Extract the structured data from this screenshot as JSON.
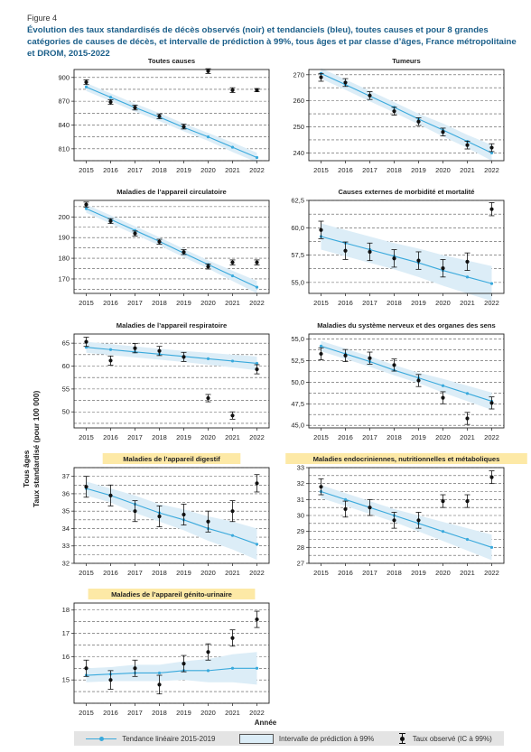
{
  "figure_label": "Figure 4",
  "title": "Évolution des taux standardisés de décès observés (noir) et tendanciels (bleu), toutes causes et pour 8 grandes catégories de causes de décès, et intervalle de prédiction à 99%, tous âges et par classe d’âges, France métropolitaine et DROM, 2015-2022",
  "y_axis_title_1": "Tous âges",
  "y_axis_title_2": "Taux standardisé (pour 100 000)",
  "x_axis_title": "Année",
  "legend": {
    "trend": "Tendance linéaire 2015-2019",
    "interval": "Intervalle de prédiction à 99%",
    "observed": "Taux observé (IC à 99%)"
  },
  "colors": {
    "trend": "#39a9dc",
    "band": "#dcedf7",
    "observed": "#111111",
    "highlight": "#fde9a6",
    "grid": "#555555"
  },
  "chart_data": [
    {
      "type": "line",
      "title": "Toutes causes",
      "highlight": false,
      "x": [
        2015,
        2016,
        2017,
        2018,
        2019,
        2020,
        2021,
        2022
      ],
      "ylim": [
        795,
        910
      ],
      "yticks": [
        810,
        840,
        870,
        900
      ],
      "ytick_labels": [
        "810",
        "840",
        "870",
        "900"
      ],
      "observed": [
        894,
        869,
        862,
        851,
        838,
        908,
        884,
        884
      ],
      "ci": [
        3,
        3,
        3,
        3,
        3,
        3,
        3,
        2
      ],
      "trend": [
        888,
        875,
        862,
        850,
        837,
        825,
        812,
        799
      ],
      "band": [
        5,
        5,
        5,
        5,
        5,
        5,
        6,
        6
      ]
    },
    {
      "type": "line",
      "title": "Tumeurs",
      "highlight": false,
      "x": [
        2015,
        2016,
        2017,
        2018,
        2019,
        2020,
        2021,
        2022
      ],
      "ylim": [
        237,
        272
      ],
      "yticks": [
        240,
        250,
        260,
        270
      ],
      "ytick_labels": [
        "240",
        "250",
        "260",
        "270"
      ],
      "observed": [
        269,
        267,
        262,
        256,
        252,
        248,
        243,
        242
      ],
      "ci": [
        1.5,
        1.5,
        1.5,
        1.5,
        1.5,
        1.5,
        1.5,
        1.5
      ],
      "trend": [
        270.5,
        266.2,
        261.8,
        257.5,
        253.0,
        248.8,
        244.4,
        240.0
      ],
      "band": [
        2,
        2,
        2,
        2,
        2,
        2.5,
        2.5,
        3
      ]
    },
    {
      "type": "line",
      "title": "Maladies de l’appareil circulatoire",
      "highlight": false,
      "x": [
        2015,
        2016,
        2017,
        2018,
        2019,
        2020,
        2021,
        2022
      ],
      "ylim": [
        163,
        208
      ],
      "yticks": [
        170,
        180,
        190,
        200
      ],
      "ytick_labels": [
        "170",
        "180",
        "190",
        "200"
      ],
      "observed": [
        206,
        198,
        192,
        188,
        183,
        176,
        178,
        178
      ],
      "ci": [
        1.2,
        1.2,
        1.2,
        1.2,
        1.2,
        1.2,
        1.2,
        1.2
      ],
      "trend": [
        204.0,
        198.8,
        193.5,
        188.2,
        182.5,
        177.0,
        171.5,
        166.0
      ],
      "band": [
        2,
        2,
        2,
        2,
        2,
        2,
        2.5,
        3
      ]
    },
    {
      "type": "line",
      "title": "Causes externes de morbidité et mortalité",
      "highlight": false,
      "x": [
        2015,
        2016,
        2017,
        2018,
        2019,
        2020,
        2021,
        2022
      ],
      "ylim": [
        54,
        62.5
      ],
      "yticks": [
        55,
        57.5,
        60,
        62.5
      ],
      "ytick_labels": [
        "55,0",
        "57,5",
        "60,0",
        "62,5"
      ],
      "observed": [
        59.8,
        57.9,
        57.8,
        57.2,
        57.0,
        56.3,
        56.9,
        61.7
      ],
      "ci": [
        0.8,
        0.8,
        0.8,
        0.8,
        0.8,
        0.8,
        0.8,
        0.6
      ],
      "trend": [
        59.2,
        58.6,
        58.0,
        57.4,
        56.8,
        56.1,
        55.5,
        54.9
      ],
      "band": [
        1.2,
        1.2,
        1.2,
        1.2,
        1.3,
        1.4,
        1.5,
        1.6
      ]
    },
    {
      "type": "line",
      "title": "Maladies de l’appareil respiratoire",
      "highlight": false,
      "x": [
        2015,
        2016,
        2017,
        2018,
        2019,
        2020,
        2021,
        2022
      ],
      "ylim": [
        46.5,
        67
      ],
      "yticks": [
        50,
        55,
        60,
        65
      ],
      "ytick_labels": [
        "50",
        "55",
        "60",
        "65"
      ],
      "observed": [
        65.3,
        61.2,
        63.9,
        63.3,
        62.0,
        53.0,
        49.2,
        59.3
      ],
      "ci": [
        1.0,
        1.0,
        1.0,
        1.0,
        1.0,
        0.8,
        0.8,
        1.0
      ],
      "trend": [
        64.1,
        63.6,
        63.1,
        62.6,
        62.1,
        61.6,
        61.1,
        60.6
      ],
      "band": [
        1.2,
        1.2,
        1.2,
        1.2,
        1.2,
        1.3,
        1.4,
        1.5
      ]
    },
    {
      "type": "line",
      "title": "Maladies du système nerveux et des organes des sens",
      "highlight": false,
      "x": [
        2015,
        2016,
        2017,
        2018,
        2019,
        2020,
        2021,
        2022
      ],
      "ylim": [
        44.7,
        55.6
      ],
      "yticks": [
        45,
        47.5,
        50,
        52.5,
        55
      ],
      "ytick_labels": [
        "45,0",
        "47,5",
        "50,0",
        "52,5",
        "55,0"
      ],
      "observed": [
        53.3,
        53.1,
        52.8,
        52.0,
        50.2,
        48.2,
        45.8,
        47.6
      ],
      "ci": [
        0.7,
        0.7,
        0.7,
        0.7,
        0.7,
        0.7,
        0.7,
        0.7
      ],
      "trend": [
        54.2,
        53.3,
        52.4,
        51.4,
        50.5,
        49.6,
        48.7,
        47.8
      ],
      "band": [
        0.6,
        0.6,
        0.6,
        0.6,
        0.6,
        0.8,
        0.9,
        1.0
      ]
    },
    {
      "type": "line",
      "title": "Maladies de l’appareil digestif",
      "highlight": true,
      "x": [
        2015,
        2016,
        2017,
        2018,
        2019,
        2020,
        2021,
        2022
      ],
      "ylim": [
        32,
        37.5
      ],
      "yticks": [
        32,
        33,
        34,
        35,
        36,
        37
      ],
      "ytick_labels": [
        "32",
        "33",
        "34",
        "35",
        "36",
        "37"
      ],
      "observed": [
        36.4,
        35.9,
        35.0,
        34.7,
        34.8,
        34.4,
        35.0,
        36.6
      ],
      "ci": [
        0.6,
        0.6,
        0.6,
        0.6,
        0.6,
        0.6,
        0.6,
        0.5
      ],
      "trend": [
        36.3,
        35.9,
        35.4,
        34.9,
        34.5,
        34.0,
        33.6,
        33.1
      ],
      "band": [
        0.4,
        0.4,
        0.5,
        0.5,
        0.6,
        0.7,
        0.8,
        0.9
      ]
    },
    {
      "type": "line",
      "title": "Maladies endocriniennes, nutritionnelles et métaboliques",
      "highlight": true,
      "x": [
        2015,
        2016,
        2017,
        2018,
        2019,
        2020,
        2021,
        2022
      ],
      "ylim": [
        27,
        33
      ],
      "yticks": [
        27,
        28,
        29,
        30,
        31,
        32,
        33
      ],
      "ytick_labels": [
        "27",
        "28",
        "29",
        "30",
        "31",
        "32",
        "33"
      ],
      "observed": [
        31.8,
        30.4,
        30.5,
        29.7,
        29.7,
        30.9,
        30.9,
        32.4
      ],
      "ci": [
        0.5,
        0.5,
        0.5,
        0.5,
        0.5,
        0.4,
        0.4,
        0.4
      ],
      "trend": [
        31.5,
        31.0,
        30.5,
        30.0,
        29.5,
        29.0,
        28.5,
        28.0
      ],
      "band": [
        0.4,
        0.4,
        0.4,
        0.4,
        0.5,
        0.6,
        0.7,
        0.8
      ]
    },
    {
      "type": "line",
      "title": "Maladies de l’appareil génito-urinaire",
      "highlight": true,
      "x": [
        2015,
        2016,
        2017,
        2018,
        2019,
        2020,
        2021,
        2022
      ],
      "ylim": [
        14,
        18.3
      ],
      "yticks": [
        15,
        16,
        17,
        18
      ],
      "ytick_labels": [
        "15",
        "16",
        "17",
        "18"
      ],
      "observed": [
        15.5,
        15.0,
        15.5,
        14.8,
        15.7,
        16.2,
        16.8,
        17.6
      ],
      "ci": [
        0.35,
        0.4,
        0.35,
        0.4,
        0.35,
        0.35,
        0.35,
        0.35
      ],
      "trend": [
        15.2,
        15.25,
        15.3,
        15.3,
        15.4,
        15.4,
        15.5,
        15.5
      ],
      "band": [
        0.3,
        0.3,
        0.35,
        0.35,
        0.4,
        0.5,
        0.6,
        0.7
      ]
    }
  ]
}
